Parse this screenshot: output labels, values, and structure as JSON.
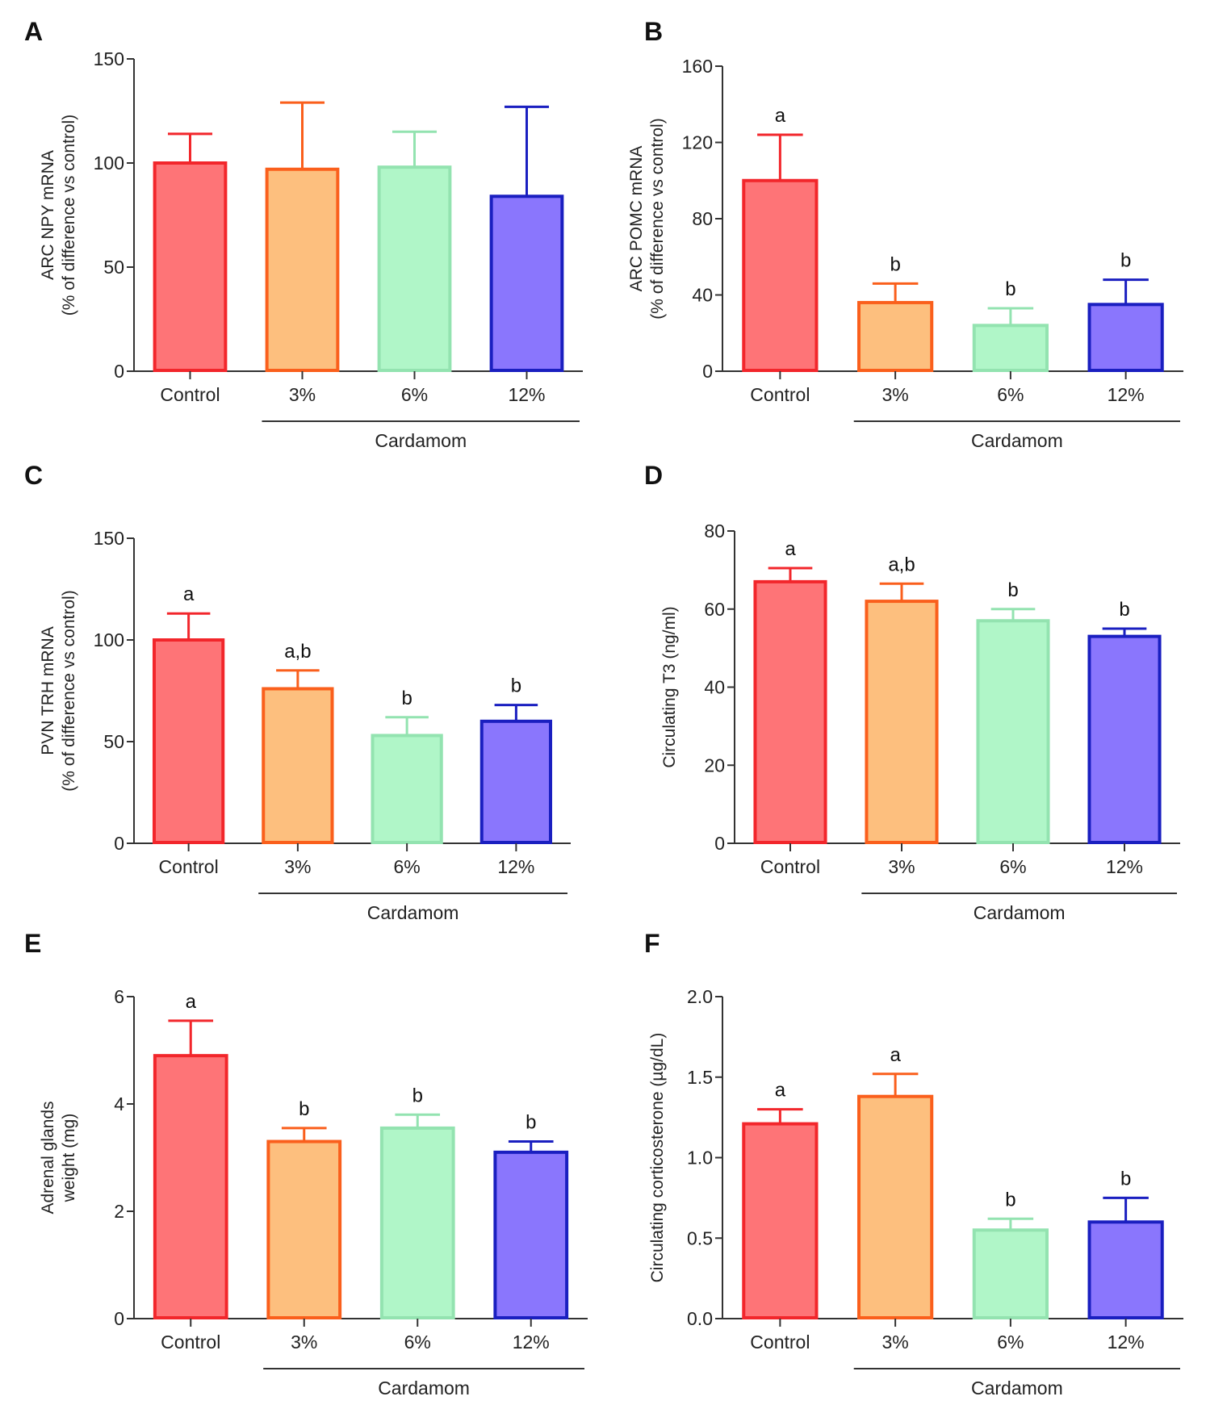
{
  "colors": {
    "fill": [
      "#fe7477",
      "#fdbf7e",
      "#b0f6c8",
      "#8a76fd"
    ],
    "stroke": [
      "#f2262b",
      "#fa5f1c",
      "#93e3b0",
      "#1a1fc0"
    ],
    "axis": "#333333"
  },
  "chart_data": [
    {
      "panel": "A",
      "type": "bar",
      "categories": [
        "Control",
        "3%",
        "6%",
        "12%"
      ],
      "group_label": "Cardamom",
      "ylabel": [
        "ARC NPY mRNA",
        "(% of difference vs control)"
      ],
      "ylim": [
        0,
        150
      ],
      "yticks": [
        "0",
        "50",
        "100",
        "150"
      ],
      "ytick_values": [
        0,
        50,
        100,
        150
      ],
      "values": [
        100,
        97,
        98,
        84
      ],
      "error_upper": [
        114,
        129,
        115,
        127
      ],
      "significance": [
        "",
        "",
        "",
        ""
      ]
    },
    {
      "panel": "B",
      "type": "bar",
      "categories": [
        "Control",
        "3%",
        "6%",
        "12%"
      ],
      "group_label": "Cardamom",
      "ylabel": [
        "ARC POMC mRNA",
        "(% of difference vs control)"
      ],
      "ylim": [
        0,
        160
      ],
      "yticks": [
        "0",
        "40",
        "80",
        "120",
        "160"
      ],
      "ytick_values": [
        0,
        40,
        80,
        120,
        160
      ],
      "values": [
        100,
        36,
        24,
        35
      ],
      "error_upper": [
        124,
        46,
        33,
        48
      ],
      "significance": [
        "a",
        "b",
        "b",
        "b"
      ]
    },
    {
      "panel": "C",
      "type": "bar",
      "categories": [
        "Control",
        "3%",
        "6%",
        "12%"
      ],
      "group_label": "Cardamom",
      "ylabel": [
        "PVN TRH mRNA",
        "(% of difference vs control)"
      ],
      "ylim": [
        0,
        150
      ],
      "yticks": [
        "0",
        "50",
        "100",
        "150"
      ],
      "ytick_values": [
        0,
        50,
        100,
        150
      ],
      "values": [
        100,
        76,
        53,
        60
      ],
      "error_upper": [
        113,
        85,
        62,
        68
      ],
      "significance": [
        "a",
        "a,b",
        "b",
        "b"
      ]
    },
    {
      "panel": "D",
      "type": "bar",
      "categories": [
        "Control",
        "3%",
        "6%",
        "12%"
      ],
      "group_label": "Cardamom",
      "ylabel": [
        "Circulating T3 (ng/ml)"
      ],
      "ylim": [
        0,
        80
      ],
      "yticks": [
        "0",
        "20",
        "40",
        "60",
        "80"
      ],
      "ytick_values": [
        0,
        20,
        40,
        60,
        80
      ],
      "values": [
        67,
        62,
        57,
        53
      ],
      "error_upper": [
        70.5,
        66.5,
        60,
        55
      ],
      "significance": [
        "a",
        "a,b",
        "b",
        "b"
      ]
    },
    {
      "panel": "E",
      "type": "bar",
      "categories": [
        "Control",
        "3%",
        "6%",
        "12%"
      ],
      "group_label": "Cardamom",
      "ylabel": [
        "Adrenal glands",
        "weight (mg)"
      ],
      "ylim": [
        0,
        6
      ],
      "yticks": [
        "0",
        "2",
        "4",
        "6"
      ],
      "ytick_values": [
        0,
        2,
        4,
        6
      ],
      "values": [
        4.9,
        3.3,
        3.55,
        3.1
      ],
      "error_upper": [
        5.55,
        3.55,
        3.8,
        3.3
      ],
      "significance": [
        "a",
        "b",
        "b",
        "b"
      ]
    },
    {
      "panel": "F",
      "type": "bar",
      "categories": [
        "Control",
        "3%",
        "6%",
        "12%"
      ],
      "group_label": "Cardamom",
      "ylabel": [
        "Circulating corticosterone (µg/dL)"
      ],
      "ylim": [
        0,
        2.0
      ],
      "yticks": [
        "0.0",
        "0.5",
        "1.0",
        "1.5",
        "2.0"
      ],
      "ytick_values": [
        0,
        0.5,
        1.0,
        1.5,
        2.0
      ],
      "values": [
        1.21,
        1.38,
        0.55,
        0.6
      ],
      "error_upper": [
        1.3,
        1.52,
        0.62,
        0.75
      ],
      "significance": [
        "a",
        "a",
        "b",
        "b"
      ]
    }
  ]
}
